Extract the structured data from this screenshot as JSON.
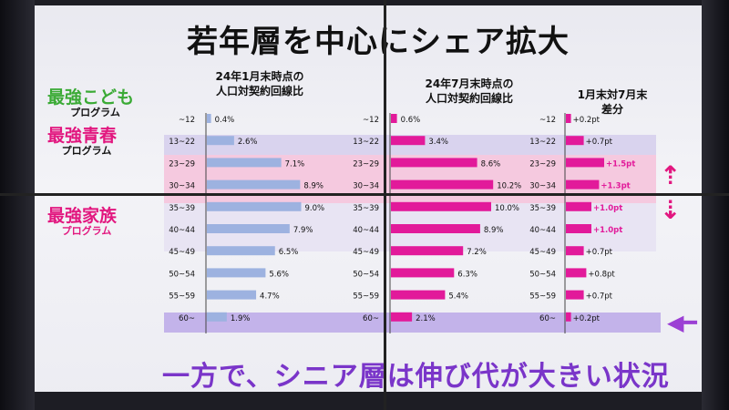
{
  "title": "若年層を中心にシェア拡大",
  "footer": "一方で、シニア層は伸び代が大きい状況",
  "programs": [
    {
      "name": "最強こども",
      "sub": "プログラム",
      "color": "#3aaa35"
    },
    {
      "name": "最強青春",
      "sub": "プログラム",
      "color": "#e2177f"
    },
    {
      "name": "最強家族",
      "sub": "プログラム",
      "color": "#e2177f"
    }
  ],
  "columns": {
    "jan": {
      "header_line1": "24年1月末時点の",
      "header_line2": "人口対契約回線比"
    },
    "jul": {
      "header_line1": "24年7月末時点の",
      "header_line2": "人口対契約回線比"
    },
    "diff": {
      "header_line1": "1月末対7月末",
      "header_line2": "差分"
    }
  },
  "colors": {
    "jan_bar": "#9db2e0",
    "jul_bar": "#e21a9a",
    "diff_bar": "#e21a9a",
    "diff_highlight_text": "#e21a9a",
    "band_lavender": "#d9d3ee",
    "band_pink": "#f5c9df",
    "band_senior": "#c3b3ea",
    "arrow_pink": "#e2177f",
    "arrow_purple": "#9b3fd4"
  },
  "chart_data": {
    "type": "bar",
    "categories": [
      "~12",
      "13~22",
      "23~29",
      "30~34",
      "35~39",
      "40~44",
      "45~49",
      "50~54",
      "55~59",
      "60~"
    ],
    "series": [
      {
        "name": "24年1月末時点の人口対契約回線比",
        "values": [
          0.4,
          2.6,
          7.1,
          8.9,
          9.0,
          7.9,
          6.5,
          5.6,
          4.7,
          1.9
        ],
        "labels": [
          "0.4%",
          "2.6%",
          "7.1%",
          "8.9%",
          "9.0%",
          "7.9%",
          "6.5%",
          "5.6%",
          "4.7%",
          "1.9%"
        ]
      },
      {
        "name": "24年7月末時点の人口対契約回線比",
        "values": [
          0.6,
          3.4,
          8.6,
          10.2,
          10.0,
          8.9,
          7.2,
          6.3,
          5.4,
          2.1
        ],
        "labels": [
          "0.6%",
          "3.4%",
          "8.6%",
          "10.2%",
          "10.0%",
          "8.9%",
          "7.2%",
          "6.3%",
          "5.4%",
          "2.1%"
        ]
      },
      {
        "name": "1月末対7月末差分",
        "values": [
          0.2,
          0.7,
          1.5,
          1.3,
          1.0,
          1.0,
          0.7,
          0.8,
          0.7,
          0.2
        ],
        "labels": [
          "+0.2pt",
          "+0.7pt",
          "+1.5pt",
          "+1.3pt",
          "+1.0pt",
          "+1.0pt",
          "+0.7pt",
          "+0.8pt",
          "+0.7pt",
          "+0.2pt"
        ]
      }
    ],
    "highlighted_diff": [
      "23~29",
      "30~34",
      "35~39",
      "40~44"
    ]
  }
}
